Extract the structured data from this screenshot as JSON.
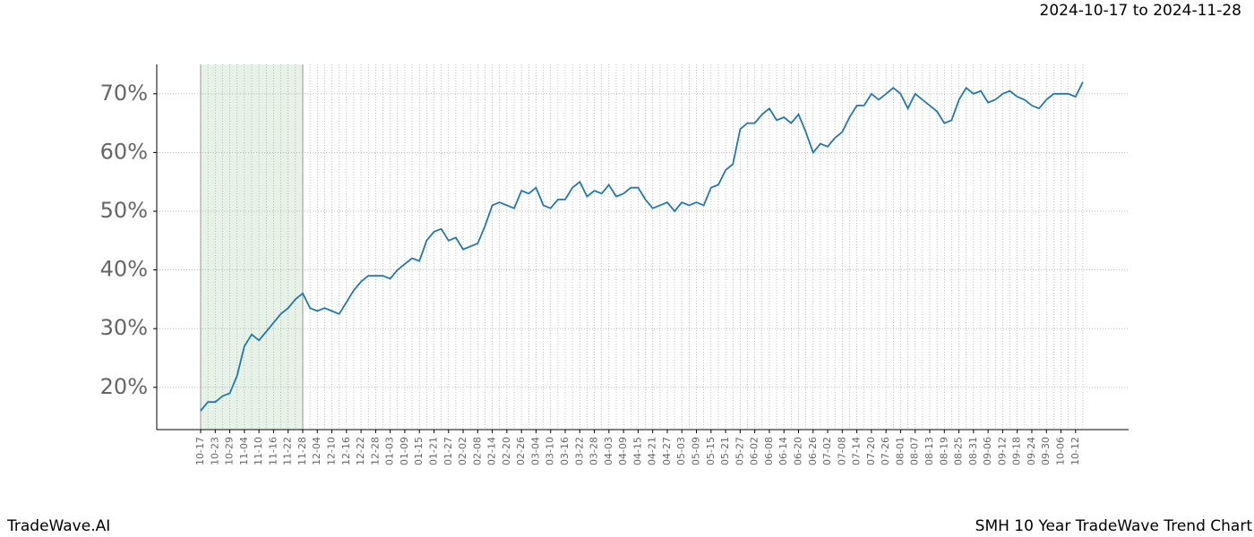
{
  "chart_data": {
    "type": "line",
    "title": "2024-10-17 to 2024-11-28",
    "footer_left": "TradeWave.AI",
    "footer_right": "SMH 10 Year TradeWave Trend Chart",
    "categories": [
      "10-17",
      null,
      "10-23",
      null,
      "10-29",
      null,
      "11-04",
      null,
      "11-10",
      null,
      "11-16",
      null,
      "11-22",
      null,
      "11-28",
      null,
      "12-04",
      null,
      "12-10",
      null,
      "12-16",
      null,
      "12-22",
      null,
      "12-28",
      null,
      "01-03",
      null,
      "01-09",
      null,
      "01-15",
      null,
      "01-21",
      null,
      "01-27",
      null,
      "02-02",
      null,
      "02-08",
      null,
      "02-14",
      null,
      "02-20",
      null,
      "02-26",
      null,
      "03-04",
      null,
      "03-10",
      null,
      "03-16",
      null,
      "03-22",
      null,
      "03-28",
      null,
      "04-03",
      null,
      "04-09",
      null,
      "04-15",
      null,
      "04-21",
      null,
      "04-27",
      null,
      "05-03",
      null,
      "05-09",
      null,
      "05-15",
      null,
      "05-21",
      null,
      "05-27",
      null,
      "06-02",
      null,
      "06-08",
      null,
      "06-14",
      null,
      "06-20",
      null,
      "06-26",
      null,
      "07-02",
      null,
      "07-08",
      null,
      "07-14",
      null,
      "07-20",
      null,
      "07-26",
      null,
      "08-01",
      null,
      "08-07",
      null,
      "08-13",
      null,
      "08-19",
      null,
      "08-25",
      null,
      "08-31",
      null,
      "09-06",
      null,
      "09-12",
      null,
      "09-18",
      null,
      "09-24",
      null,
      "09-30",
      null,
      "10-06",
      null,
      "10-12",
      null
    ],
    "series": [
      {
        "color": "#1f77b4",
        "values": [
          16,
          17.5,
          17.5,
          18.5,
          19,
          22,
          27,
          29,
          28,
          29.5,
          31,
          32.5,
          33.5,
          35,
          36,
          33.5,
          33,
          33.5,
          33,
          32.5,
          34.5,
          36.5,
          38,
          39,
          39,
          39,
          38.5,
          40,
          41,
          42,
          41.5,
          45,
          46.5,
          47,
          45,
          45.5,
          43.5,
          44,
          44.5,
          47.5,
          51,
          51.5,
          51,
          50.5,
          53.5,
          53,
          54,
          51,
          50.5,
          52,
          52,
          54,
          55,
          52.5,
          53.5,
          53,
          54.5,
          52.5,
          53,
          54,
          54,
          52,
          50.5,
          51,
          51.5,
          50,
          51.5,
          51,
          51.5,
          51,
          54,
          54.5,
          57,
          58,
          64,
          65,
          65,
          66.5,
          67.5,
          65.5,
          66,
          65,
          66.5,
          63.5,
          60,
          61.5,
          61,
          62.5,
          63.5,
          66,
          68,
          68,
          70,
          69,
          70,
          71,
          70,
          67.5,
          70,
          69,
          68,
          67,
          65,
          65.5,
          69,
          71,
          70,
          70.5,
          68.5,
          69,
          70,
          70.5,
          69.5,
          69,
          68,
          67.5,
          69,
          70,
          70,
          70,
          69.5,
          72
        ]
      }
    ],
    "shade": [
      "10-17",
      "11-28"
    ],
    "shade_color": "#e6f2e6",
    "ylim": [
      12.8,
      75
    ],
    "yticks": [
      {
        "value": 20,
        "label": "20%"
      },
      {
        "value": 30,
        "label": "30%"
      },
      {
        "value": 40,
        "label": "40%"
      },
      {
        "value": 50,
        "label": "50%"
      },
      {
        "value": 60,
        "label": "60%"
      },
      {
        "value": 70,
        "label": "70%"
      }
    ],
    "grid": true
  }
}
